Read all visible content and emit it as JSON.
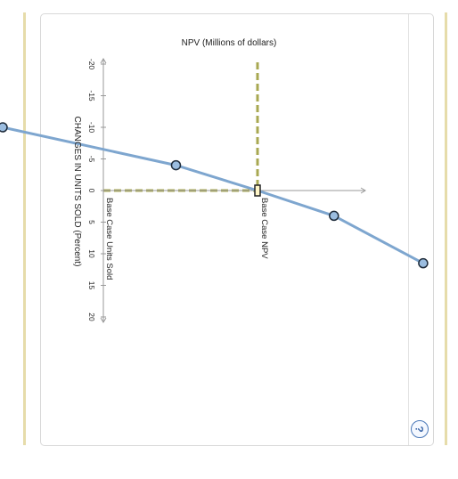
{
  "chart_data": {
    "type": "line",
    "title": "NPV (Millions of dollars)",
    "ylabel": "CHANGES IN UNITS SOLD (Percent)",
    "orientation": "rotated 90 degrees clockwise",
    "y_ticks": [
      -20,
      -15,
      -10,
      -5,
      0,
      5,
      10,
      15,
      20
    ],
    "y_range": [
      -20,
      20
    ],
    "series": [
      {
        "color": "#7ea6cf",
        "points": [
          {
            "change_pct": -10,
            "npv_rel": -1.0
          },
          {
            "change_pct": -4,
            "npv_rel": -0.32
          },
          {
            "change_pct": 0,
            "npv_rel": 0.0
          },
          {
            "change_pct": 4,
            "npv_rel": 0.3
          },
          {
            "change_pct": 11.5,
            "npv_rel": 0.65
          }
        ]
      }
    ],
    "reference_lines": {
      "horizontal_label": "Base Case NPV",
      "vertical_label": "Base Case Units Sold",
      "color": "#a8a852"
    },
    "base_point": {
      "change_pct": 0,
      "npv_rel": 0.0
    }
  },
  "help": {
    "icon": "question-mark-icon",
    "label": "?"
  }
}
